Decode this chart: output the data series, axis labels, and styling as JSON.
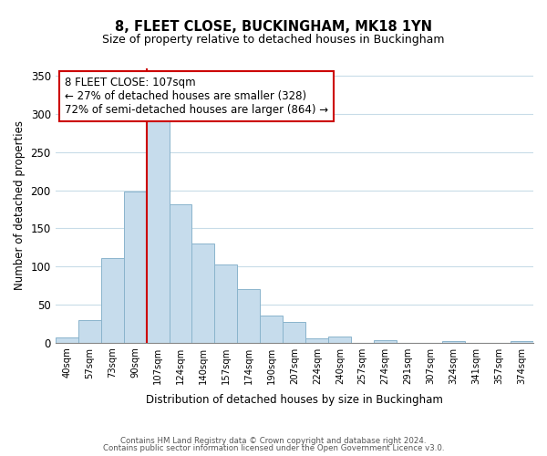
{
  "title1": "8, FLEET CLOSE, BUCKINGHAM, MK18 1YN",
  "title2": "Size of property relative to detached houses in Buckingham",
  "xlabel": "Distribution of detached houses by size in Buckingham",
  "ylabel": "Number of detached properties",
  "categories": [
    "40sqm",
    "57sqm",
    "73sqm",
    "90sqm",
    "107sqm",
    "124sqm",
    "140sqm",
    "157sqm",
    "174sqm",
    "190sqm",
    "207sqm",
    "224sqm",
    "240sqm",
    "257sqm",
    "274sqm",
    "291sqm",
    "307sqm",
    "324sqm",
    "341sqm",
    "357sqm",
    "374sqm"
  ],
  "values": [
    7,
    29,
    111,
    198,
    293,
    181,
    130,
    103,
    70,
    35,
    27,
    5,
    8,
    0,
    3,
    0,
    0,
    2,
    0,
    0,
    2
  ],
  "bar_color": "#c6dcec",
  "bar_edge_color": "#8ab4cc",
  "vline_color": "#cc0000",
  "ylim": [
    0,
    360
  ],
  "yticks": [
    0,
    50,
    100,
    150,
    200,
    250,
    300,
    350
  ],
  "annotation_line1": "8 FLEET CLOSE: 107sqm",
  "annotation_line2": "← 27% of detached houses are smaller (328)",
  "annotation_line3": "72% of semi-detached houses are larger (864) →",
  "footnote1": "Contains HM Land Registry data © Crown copyright and database right 2024.",
  "footnote2": "Contains public sector information licensed under the Open Government Licence v3.0.",
  "background_color": "#ffffff",
  "grid_color": "#c8dce8"
}
